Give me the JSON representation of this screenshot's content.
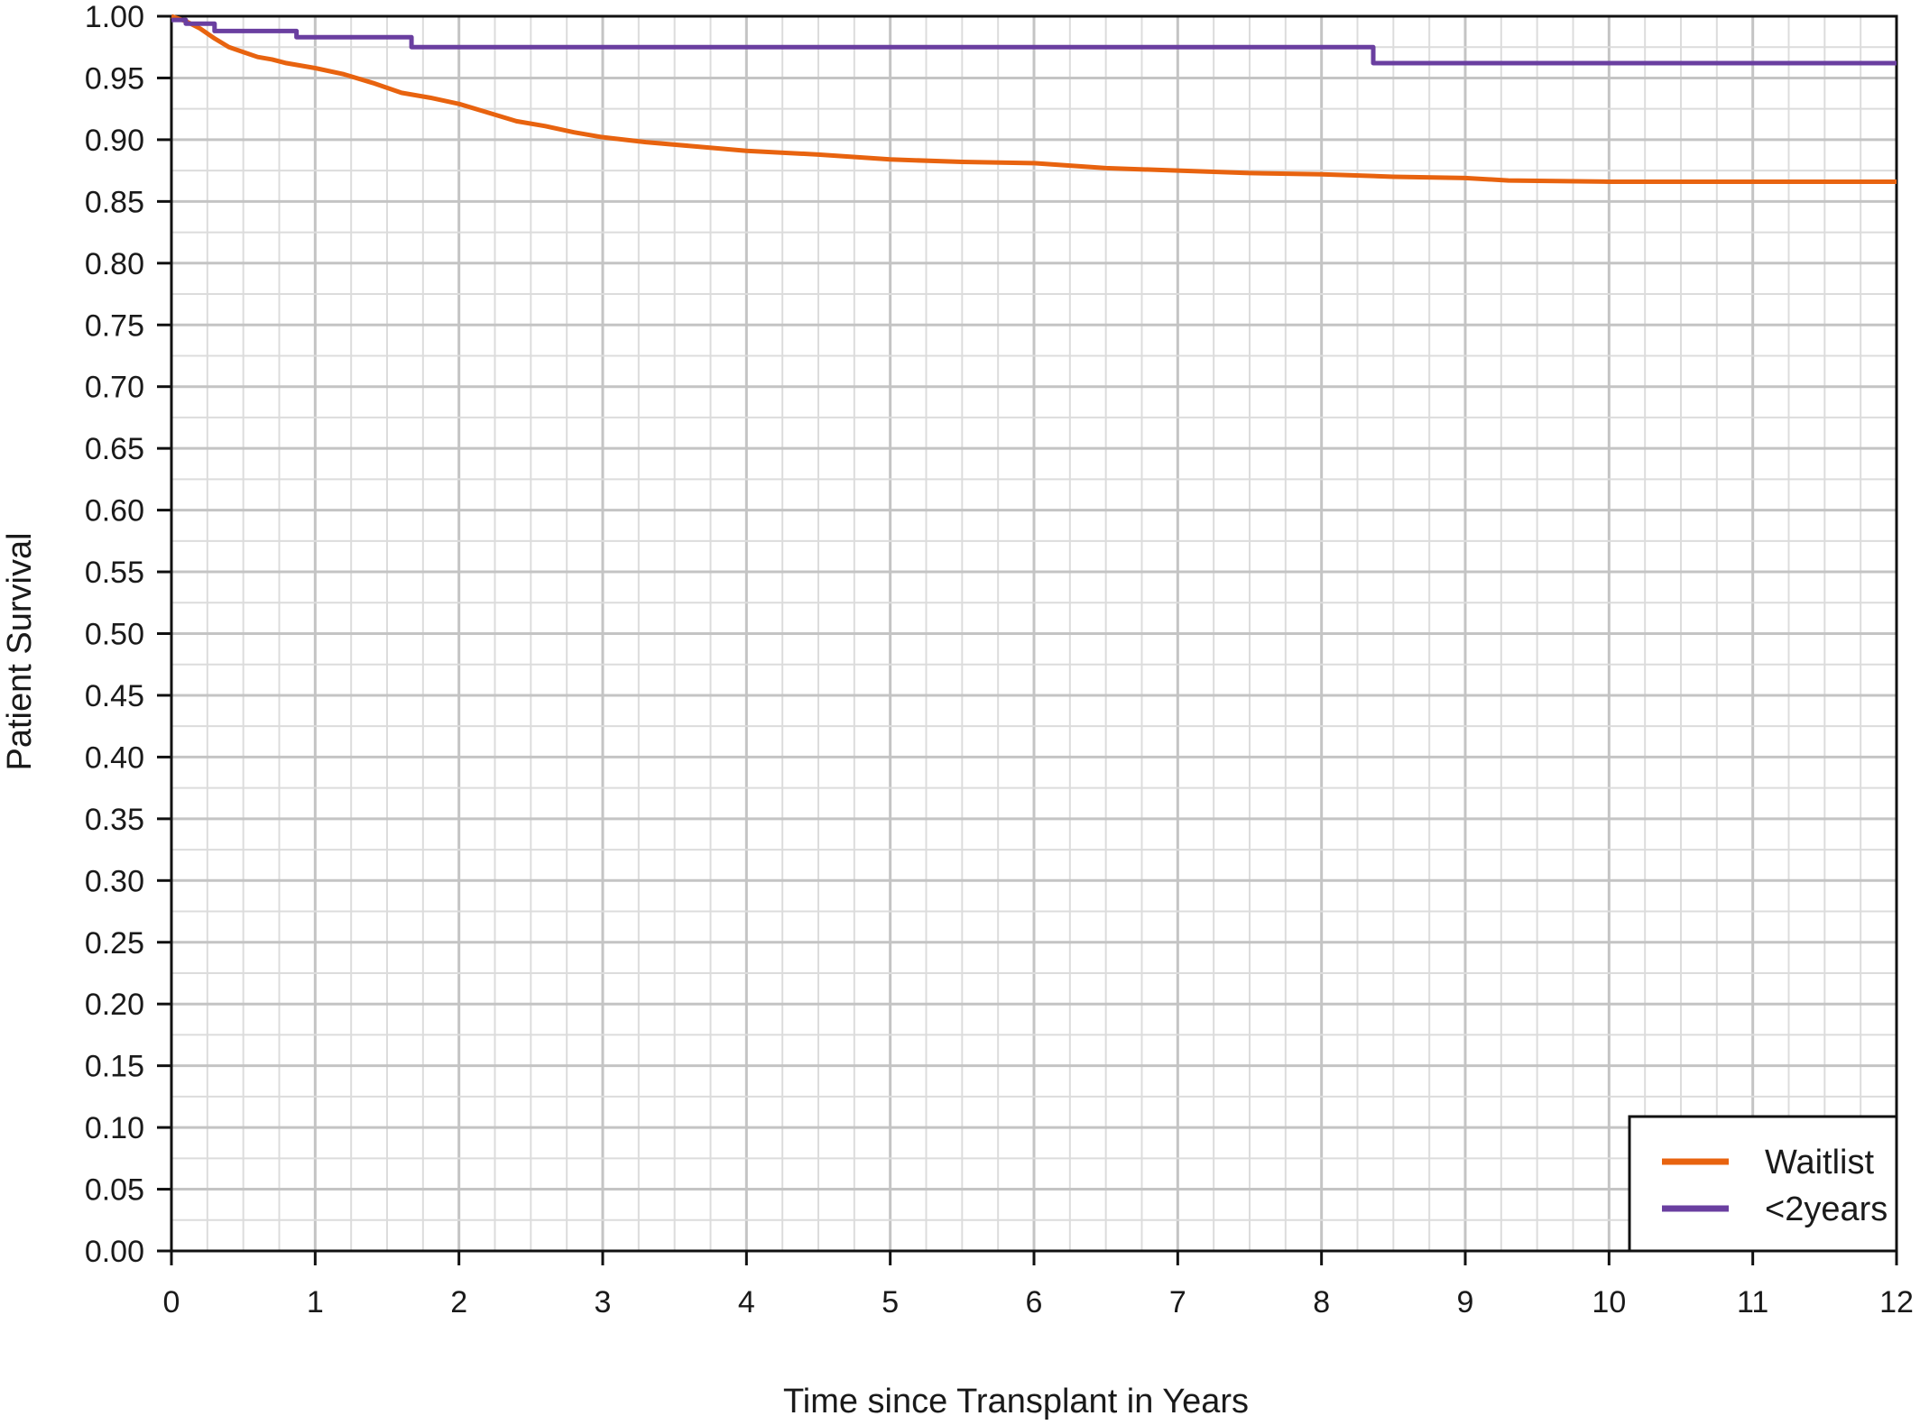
{
  "chart_data": {
    "type": "line",
    "title": "",
    "xlabel": "Time since Transplant in Years",
    "ylabel": "Patient Survival",
    "xlim": [
      0,
      12
    ],
    "ylim": [
      0,
      1
    ],
    "x_ticks": [
      "0",
      "1",
      "2",
      "3",
      "4",
      "5",
      "6",
      "7",
      "8",
      "9",
      "10",
      "11",
      "12"
    ],
    "y_ticks": [
      "0.00",
      "0.05",
      "0.10",
      "0.15",
      "0.20",
      "0.25",
      "0.30",
      "0.35",
      "0.40",
      "0.45",
      "0.50",
      "0.55",
      "0.60",
      "0.65",
      "0.70",
      "0.75",
      "0.80",
      "0.85",
      "0.90",
      "0.95",
      "1.00"
    ],
    "grid": true,
    "legend_position": "bottom-right",
    "series": [
      {
        "name": "Waitlist",
        "color": "#e8630f",
        "step": false,
        "points": [
          [
            0,
            1.0
          ],
          [
            0.1,
            0.996
          ],
          [
            0.2,
            0.99
          ],
          [
            0.3,
            0.982
          ],
          [
            0.4,
            0.975
          ],
          [
            0.5,
            0.971
          ],
          [
            0.6,
            0.967
          ],
          [
            0.7,
            0.965
          ],
          [
            0.8,
            0.962
          ],
          [
            1.0,
            0.958
          ],
          [
            1.2,
            0.953
          ],
          [
            1.4,
            0.946
          ],
          [
            1.6,
            0.938
          ],
          [
            1.8,
            0.934
          ],
          [
            2.0,
            0.929
          ],
          [
            2.2,
            0.922
          ],
          [
            2.4,
            0.915
          ],
          [
            2.6,
            0.911
          ],
          [
            2.8,
            0.906
          ],
          [
            3.0,
            0.902
          ],
          [
            3.3,
            0.898
          ],
          [
            3.6,
            0.895
          ],
          [
            4.0,
            0.891
          ],
          [
            4.5,
            0.888
          ],
          [
            5.0,
            0.884
          ],
          [
            5.5,
            0.882
          ],
          [
            6.0,
            0.881
          ],
          [
            6.5,
            0.877
          ],
          [
            7.0,
            0.875
          ],
          [
            7.5,
            0.873
          ],
          [
            8.0,
            0.872
          ],
          [
            8.5,
            0.87
          ],
          [
            9.0,
            0.869
          ],
          [
            9.3,
            0.867
          ],
          [
            10.0,
            0.866
          ],
          [
            11.0,
            0.866
          ],
          [
            12.0,
            0.866
          ]
        ]
      },
      {
        "name": "<2years",
        "color": "#6a3fa0",
        "step": true,
        "points": [
          [
            0,
            0.997
          ],
          [
            0.1,
            0.994
          ],
          [
            0.3,
            0.988
          ],
          [
            0.87,
            0.983
          ],
          [
            1.67,
            0.975
          ],
          [
            8.36,
            0.962
          ],
          [
            12.0,
            0.962
          ]
        ]
      }
    ]
  }
}
